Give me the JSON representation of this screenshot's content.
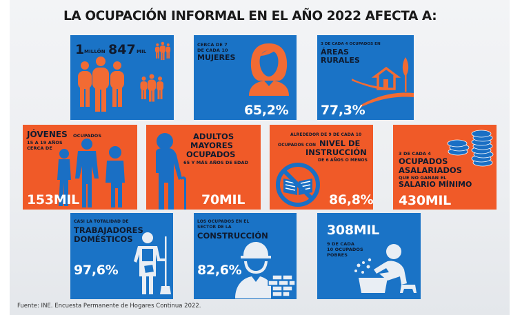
{
  "title": "LA OCUPACIÓN INFORMAL EN EL AÑO 2022 AFECTA A:",
  "colors": {
    "blue": "#1a73c6",
    "orange": "#f05a28",
    "dark_text": "#0f1a2e",
    "icon_light": "#e9eef4"
  },
  "cards": {
    "total": {
      "num1": "1",
      "unit1": "MILLÓN",
      "num2": "847",
      "unit2": "MIL",
      "icon": "group-of-workers-icon"
    },
    "mujeres": {
      "pre1": "CERCA DE 7",
      "pre2": "DE CADA 10",
      "label": "MUJERES",
      "value": "65,2%",
      "icon": "woman-icon"
    },
    "rurales": {
      "pre": "3 DE CADA 4 OCUPADOS EN",
      "label1": "ÁREAS",
      "label2": "RURALES",
      "value": "77,3%",
      "icon": "rural-house-icon"
    },
    "jovenes": {
      "label": "JÓVENES",
      "post": "OCUPADOS",
      "sub1": "15 A 19 AÑOS",
      "sub2": "CERCA DE",
      "value": "153MIL",
      "icon": "young-people-icon"
    },
    "adultos": {
      "label1": "ADULTOS",
      "label2": "MAYORES",
      "label3": "OCUPADOS",
      "sub": "65 Y MÁS AÑOS DE EDAD",
      "value": "70MIL",
      "icon": "elderly-person-icon"
    },
    "instruccion": {
      "pre1": "ALREDEDOR DE 9 DE CADA 10",
      "pre2": "OCUPADOS CON",
      "label1": "NIVEL DE",
      "label2": "INSTRUCCIÓN",
      "sub": "DE 6 AÑOS O MENOS",
      "value": "86,8%",
      "icon": "no-book-icon"
    },
    "salario": {
      "pre": "3 DE CADA 4",
      "label1": "OCUPADOS",
      "label2": "ASALARIADOS",
      "sub": "QUE NO GANAN EL",
      "label3": "SALARIO MÍNIMO",
      "value": "430MIL",
      "icon": "coin-stack-icon"
    },
    "domesticos": {
      "pre": "CASI LA TOTALIDAD DE",
      "label1": "TRABAJADORES",
      "label2": "DOMÉSTICOS",
      "value": "97,6%",
      "icon": "domestic-worker-icon"
    },
    "construccion": {
      "pre1": "LOS OCUPADOS EN EL",
      "pre2": "SECTOR DE LA",
      "label": "CONSTRUCCIÓN",
      "value": "82,6%",
      "icon": "construction-worker-icon"
    },
    "pobres": {
      "value": "308MIL",
      "sub1": "9 DE CADA",
      "sub2": "10 OCUPADOS",
      "sub3": "POBRES",
      "icon": "person-washing-icon"
    }
  },
  "source": "Fuente: INE. Encuesta Permanente de Hogares Continua 2022."
}
